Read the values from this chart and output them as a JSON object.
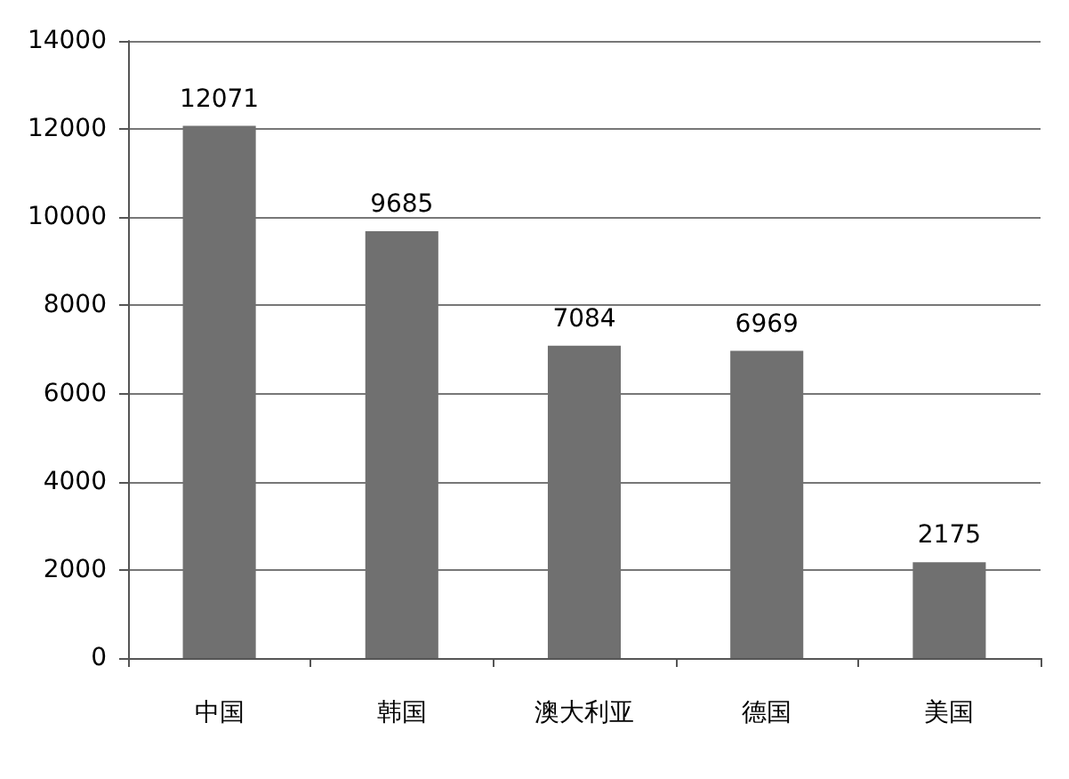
{
  "chart_data": {
    "type": "bar",
    "categories": [
      "中国",
      "韩国",
      "澳大利亚",
      "德国",
      "美国"
    ],
    "values": [
      12071,
      9685,
      7084,
      6969,
      2175
    ],
    "color": "#707070",
    "ylim": [
      0,
      14000
    ],
    "yticks": [
      0,
      2000,
      4000,
      6000,
      8000,
      10000,
      12000,
      14000
    ],
    "grid": "y",
    "data_labels": true
  }
}
